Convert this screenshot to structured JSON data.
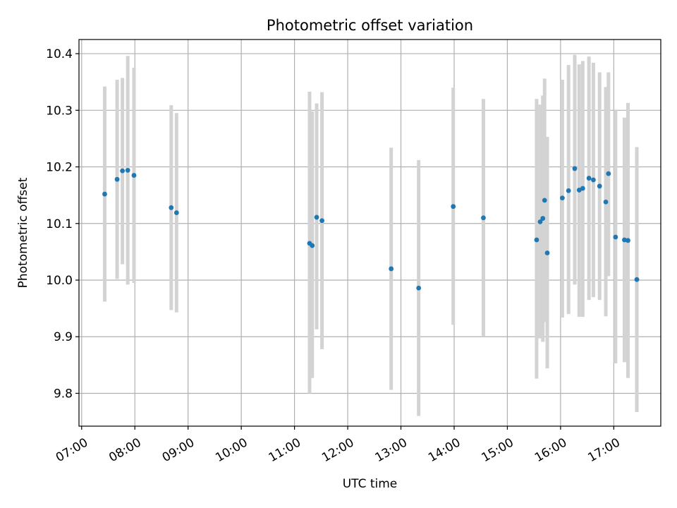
{
  "chart_data": {
    "type": "scatter",
    "title": "Photometric offset variation",
    "xlabel": "UTC time",
    "ylabel": "Photometric offset",
    "xlim": [
      "06:57",
      "17:53"
    ],
    "ylim": [
      9.742,
      10.425
    ],
    "grid": true,
    "x_ticks": [
      "07:00",
      "08:00",
      "09:00",
      "10:00",
      "11:00",
      "12:00",
      "13:00",
      "14:00",
      "15:00",
      "16:00",
      "17:00"
    ],
    "y_ticks": [
      "9.8",
      "9.9",
      "10.0",
      "10.1",
      "10.2",
      "10.3",
      "10.4"
    ],
    "colors": {
      "points": "#1f77b4",
      "errorbars": "#d3d3d3",
      "grid": "#b0b0b0"
    },
    "points": [
      {
        "x": "07:26",
        "y": 10.152,
        "ylo": 9.962,
        "yhi": 10.342
      },
      {
        "x": "07:40",
        "y": 10.178,
        "ylo": 10.002,
        "yhi": 10.354
      },
      {
        "x": "07:46",
        "y": 10.193,
        "ylo": 10.028,
        "yhi": 10.357
      },
      {
        "x": "07:52",
        "y": 10.194,
        "ylo": 9.992,
        "yhi": 10.396
      },
      {
        "x": "07:59",
        "y": 10.185,
        "ylo": 9.995,
        "yhi": 10.375
      },
      {
        "x": "08:41",
        "y": 10.128,
        "ylo": 9.947,
        "yhi": 10.309
      },
      {
        "x": "08:47",
        "y": 10.119,
        "ylo": 9.943,
        "yhi": 10.295
      },
      {
        "x": "11:17",
        "y": 10.065,
        "ylo": 9.8,
        "yhi": 10.333
      },
      {
        "x": "11:20",
        "y": 10.061,
        "ylo": 9.827,
        "yhi": 10.298
      },
      {
        "x": "11:25",
        "y": 10.111,
        "ylo": 9.913,
        "yhi": 10.312
      },
      {
        "x": "11:31",
        "y": 10.105,
        "ylo": 9.878,
        "yhi": 10.332
      },
      {
        "x": "12:49",
        "y": 10.02,
        "ylo": 9.806,
        "yhi": 10.234
      },
      {
        "x": "13:20",
        "y": 9.986,
        "ylo": 9.76,
        "yhi": 10.212
      },
      {
        "x": "13:59",
        "y": 10.13,
        "ylo": 9.921,
        "yhi": 10.34
      },
      {
        "x": "14:33",
        "y": 10.11,
        "ylo": 9.9,
        "yhi": 10.32
      },
      {
        "x": "15:33",
        "y": 10.071,
        "ylo": 9.826,
        "yhi": 10.32
      },
      {
        "x": "15:37",
        "y": 10.103,
        "ylo": 9.897,
        "yhi": 10.31
      },
      {
        "x": "15:40",
        "y": 10.109,
        "ylo": 9.891,
        "yhi": 10.326
      },
      {
        "x": "15:42",
        "y": 10.141,
        "ylo": 9.926,
        "yhi": 10.356
      },
      {
        "x": "15:45",
        "y": 10.048,
        "ylo": 9.844,
        "yhi": 10.253
      },
      {
        "x": "16:02",
        "y": 10.145,
        "ylo": 9.934,
        "yhi": 10.354
      },
      {
        "x": "16:09",
        "y": 10.158,
        "ylo": 9.94,
        "yhi": 10.38
      },
      {
        "x": "16:16",
        "y": 10.197,
        "ylo": 9.992,
        "yhi": 10.398
      },
      {
        "x": "16:21",
        "y": 10.159,
        "ylo": 9.935,
        "yhi": 10.381
      },
      {
        "x": "16:25",
        "y": 10.162,
        "ylo": 9.935,
        "yhi": 10.387
      },
      {
        "x": "16:32",
        "y": 10.18,
        "ylo": 9.965,
        "yhi": 10.395
      },
      {
        "x": "16:37",
        "y": 10.177,
        "ylo": 9.97,
        "yhi": 10.384
      },
      {
        "x": "16:44",
        "y": 10.166,
        "ylo": 9.965,
        "yhi": 10.367
      },
      {
        "x": "16:51",
        "y": 10.138,
        "ylo": 9.936,
        "yhi": 10.341
      },
      {
        "x": "16:54",
        "y": 10.188,
        "ylo": 10.007,
        "yhi": 10.367
      },
      {
        "x": "17:02",
        "y": 10.076,
        "ylo": 9.853,
        "yhi": 10.3
      },
      {
        "x": "17:12",
        "y": 10.071,
        "ylo": 9.855,
        "yhi": 10.287
      },
      {
        "x": "17:16",
        "y": 10.07,
        "ylo": 9.827,
        "yhi": 10.313
      },
      {
        "x": "17:26",
        "y": 10.001,
        "ylo": 9.767,
        "yhi": 10.235
      }
    ]
  }
}
